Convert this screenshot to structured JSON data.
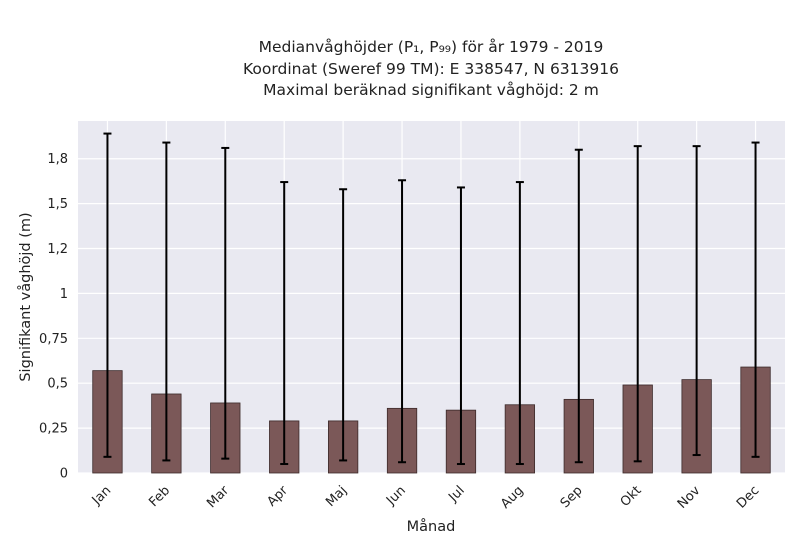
{
  "chart_data": {
    "type": "bar",
    "title_lines": [
      "Medianvåghöjder (P₁, P₉₉) för år 1979 - 2019",
      "Koordinat (Sweref 99 TM): E 338547, N 6313916",
      "Maximal beräknad signifikant våghöjd: 2 m"
    ],
    "xlabel": "Månad",
    "ylabel": "Signifikant våghöjd (m)",
    "categories": [
      "Jan",
      "Feb",
      "Mar",
      "Apr",
      "Maj",
      "Jun",
      "Jul",
      "Aug",
      "Sep",
      "Okt",
      "Nov",
      "Dec"
    ],
    "values": [
      0.57,
      0.44,
      0.39,
      0.29,
      0.29,
      0.36,
      0.35,
      0.38,
      0.41,
      0.49,
      0.52,
      0.59
    ],
    "p1": [
      0.09,
      0.07,
      0.08,
      0.05,
      0.07,
      0.06,
      0.05,
      0.05,
      0.06,
      0.065,
      0.1,
      0.09
    ],
    "p99": [
      1.89,
      1.84,
      1.81,
      1.62,
      1.58,
      1.63,
      1.59,
      1.62,
      1.8,
      1.82,
      1.82,
      1.84
    ],
    "ylim": [
      0,
      1.96
    ],
    "yticks": [
      0,
      0.25,
      0.5,
      0.75,
      1,
      1.25,
      1.5,
      1.75
    ],
    "ytick_labels": [
      "0",
      "0,25",
      "0,5",
      "0,75",
      "1",
      "1,2",
      "1,5",
      "1,8"
    ],
    "grid": true,
    "colors": {
      "bar": "#7b5858",
      "bar_edge": "#3c2a2a",
      "plot_bg": "#e9e9f1",
      "grid": "#ffffff",
      "error": "#000000"
    }
  }
}
